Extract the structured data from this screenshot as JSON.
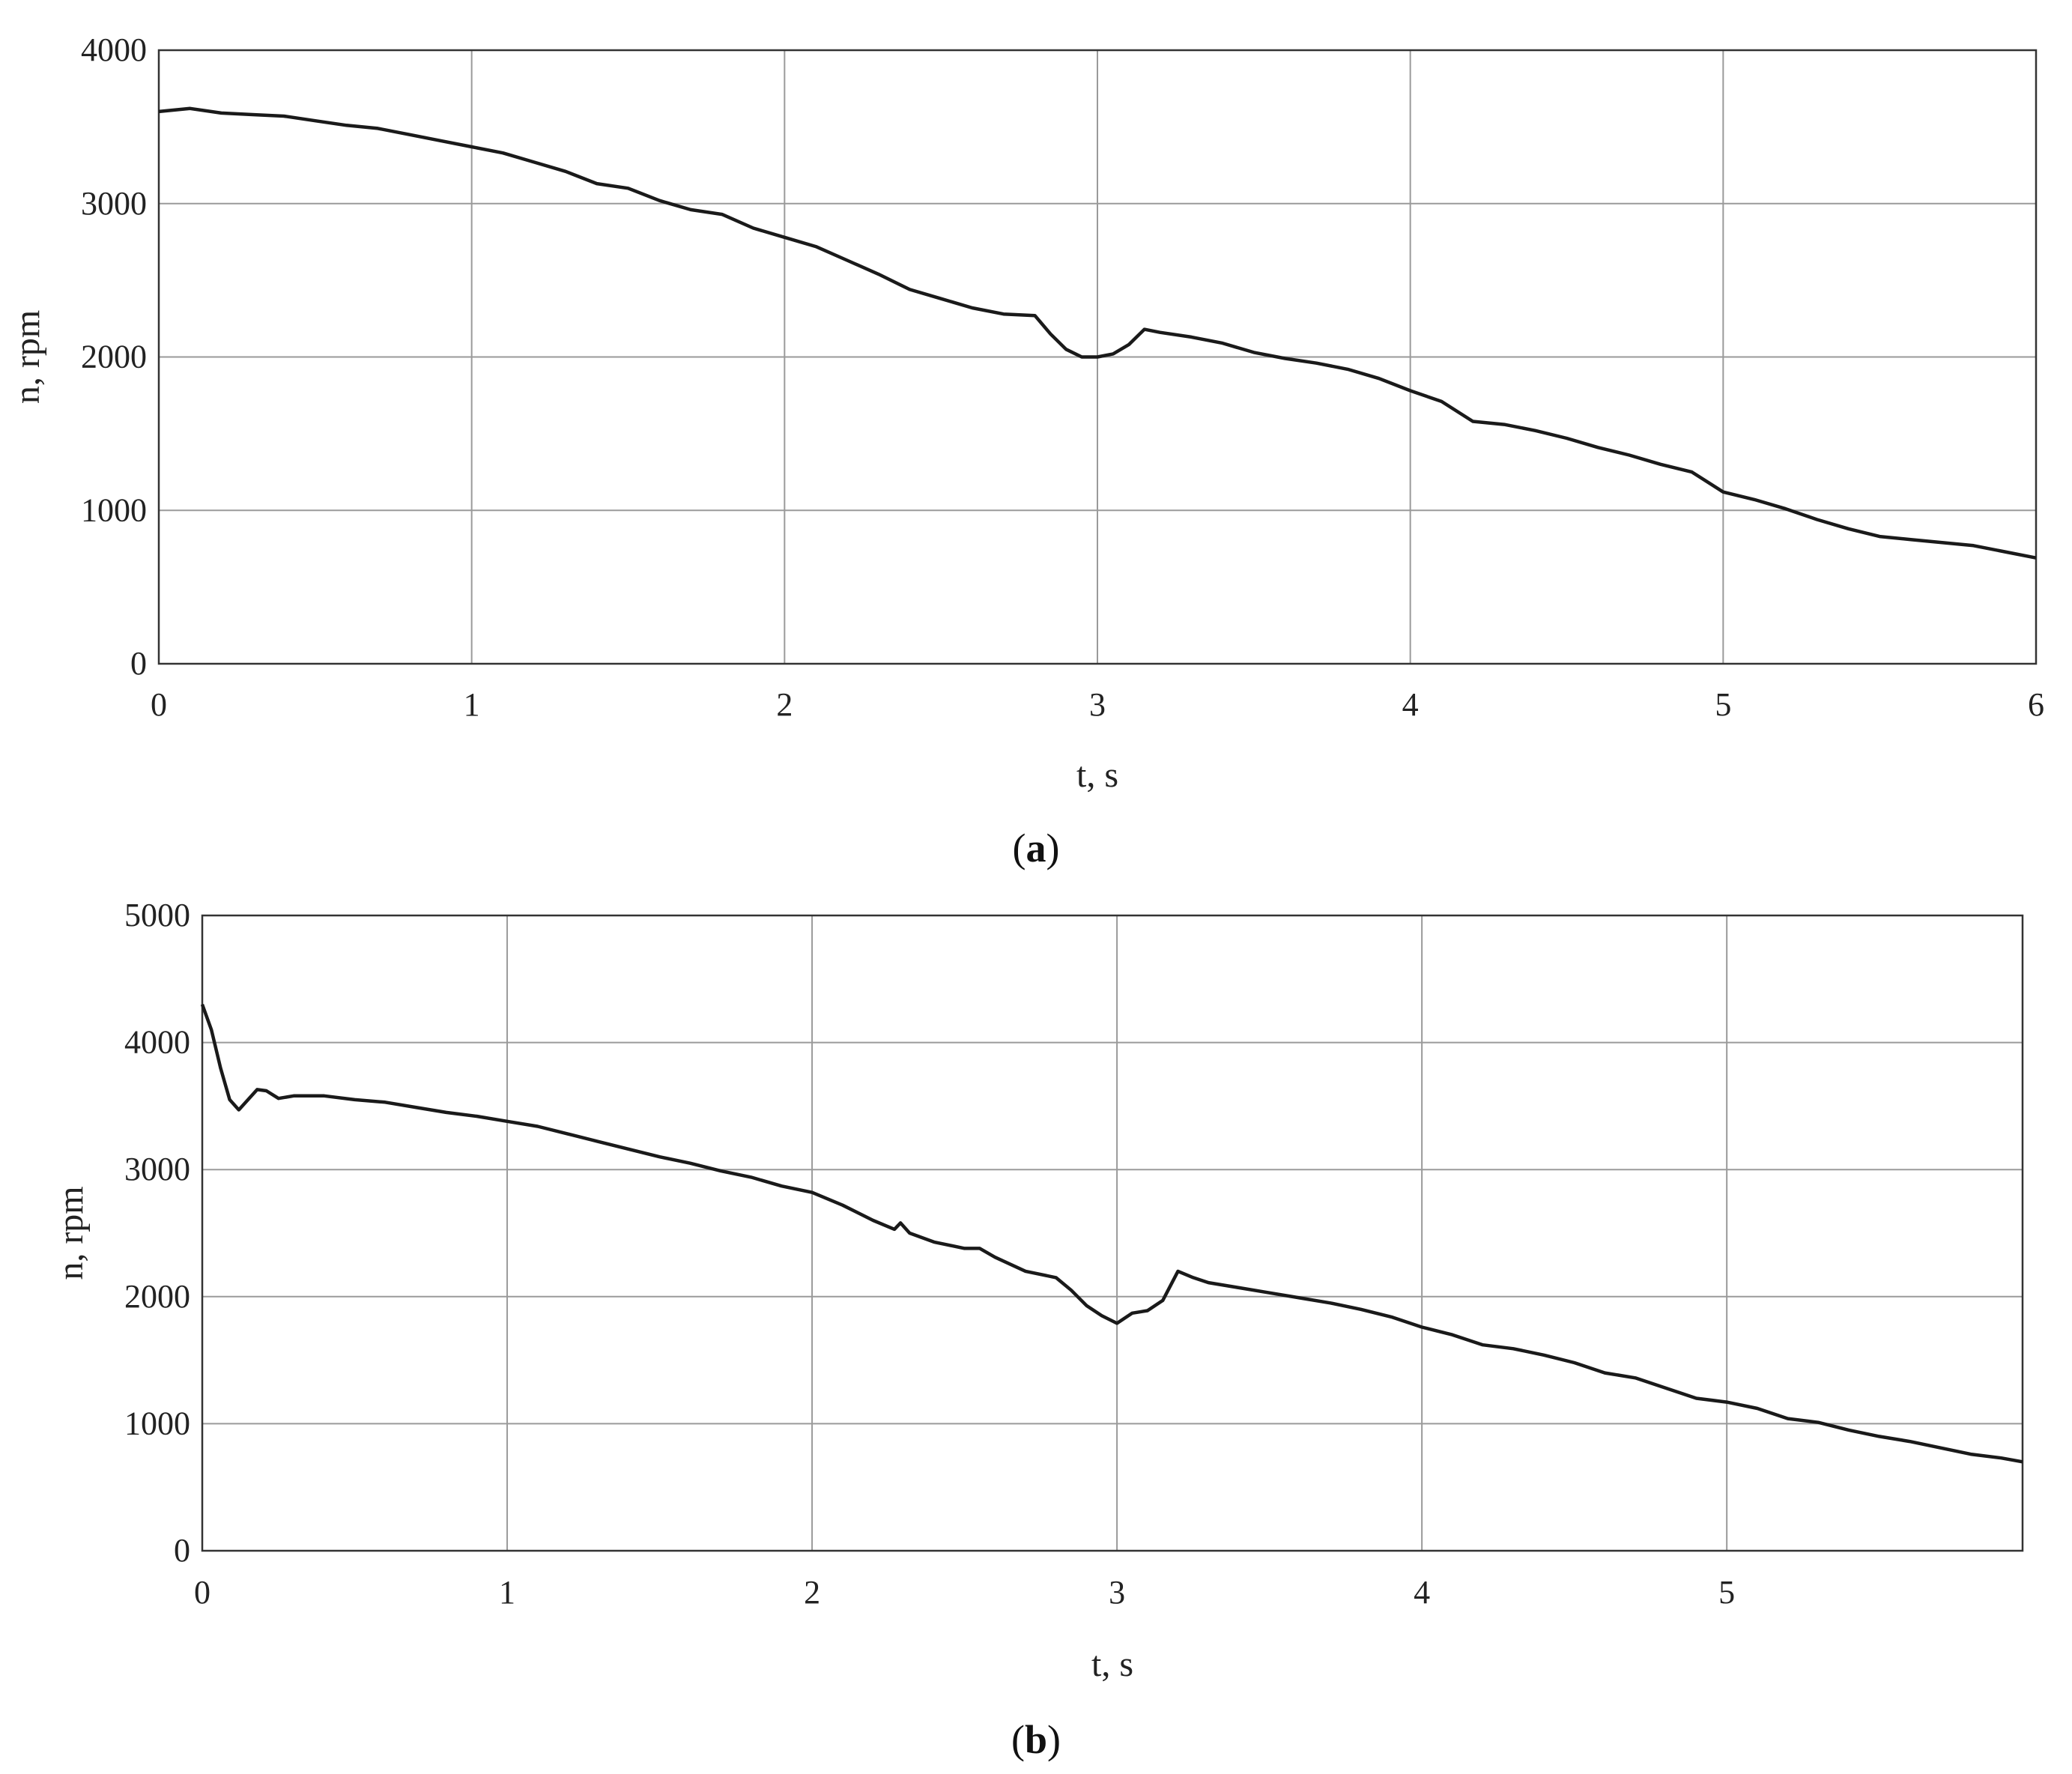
{
  "chart_data": [
    {
      "type": "line",
      "panel_label": "a",
      "xlabel": "t, s",
      "ylabel": "n, rpm",
      "xlim": [
        0,
        6
      ],
      "ylim": [
        0,
        4000
      ],
      "x_ticks": [
        "0",
        "1",
        "2",
        "3",
        "4",
        "5",
        "6"
      ],
      "y_ticks": [
        "0",
        "1000",
        "2000",
        "3000",
        "4000"
      ],
      "grid": true,
      "series": [
        {
          "x": [
            0,
            0.1,
            0.2,
            0.3,
            0.4,
            0.5,
            0.6,
            0.7,
            0.8,
            0.9,
            1.0,
            1.1,
            1.2,
            1.3,
            1.4,
            1.5,
            1.6,
            1.7,
            1.8,
            1.9,
            2.0,
            2.1,
            2.2,
            2.3,
            2.4,
            2.5,
            2.6,
            2.7,
            2.8,
            2.85,
            2.9,
            2.95,
            3.0,
            3.05,
            3.1,
            3.15,
            3.2,
            3.3,
            3.4,
            3.5,
            3.6,
            3.7,
            3.8,
            3.9,
            4.0,
            4.1,
            4.2,
            4.3,
            4.4,
            4.5,
            4.6,
            4.7,
            4.8,
            4.9,
            5.0,
            5.1,
            5.2,
            5.3,
            5.4,
            5.5,
            5.6,
            5.7,
            5.8,
            5.9,
            6.0
          ],
          "y": [
            3600,
            3620,
            3590,
            3580,
            3570,
            3540,
            3510,
            3490,
            3450,
            3410,
            3370,
            3330,
            3270,
            3210,
            3130,
            3100,
            3020,
            2960,
            2930,
            2840,
            2780,
            2720,
            2630,
            2540,
            2440,
            2380,
            2320,
            2280,
            2270,
            2150,
            2050,
            2000,
            2000,
            2020,
            2080,
            2180,
            2160,
            2130,
            2090,
            2030,
            1990,
            1960,
            1920,
            1860,
            1780,
            1710,
            1580,
            1560,
            1520,
            1470,
            1410,
            1360,
            1300,
            1250,
            1120,
            1070,
            1010,
            940,
            880,
            830,
            810,
            790,
            770,
            730,
            690
          ]
        }
      ]
    },
    {
      "type": "line",
      "panel_label": "b",
      "xlabel": "t, s",
      "ylabel": "n, rpm",
      "xlim": [
        0,
        5.97
      ],
      "ylim": [
        0,
        5000
      ],
      "x_ticks": [
        "0",
        "1",
        "2",
        "3",
        "4",
        "5"
      ],
      "y_ticks": [
        "0",
        "1000",
        "2000",
        "3000",
        "4000",
        "5000"
      ],
      "grid": true,
      "series": [
        {
          "x": [
            0,
            0.03,
            0.06,
            0.09,
            0.12,
            0.15,
            0.18,
            0.21,
            0.25,
            0.3,
            0.4,
            0.5,
            0.6,
            0.7,
            0.8,
            0.9,
            1.0,
            1.1,
            1.2,
            1.3,
            1.4,
            1.5,
            1.6,
            1.7,
            1.8,
            1.9,
            2.0,
            2.1,
            2.2,
            2.27,
            2.29,
            2.32,
            2.4,
            2.5,
            2.55,
            2.6,
            2.7,
            2.8,
            2.85,
            2.9,
            2.95,
            3.0,
            3.05,
            3.1,
            3.15,
            3.2,
            3.25,
            3.3,
            3.4,
            3.5,
            3.6,
            3.7,
            3.8,
            3.9,
            4.0,
            4.1,
            4.2,
            4.3,
            4.4,
            4.5,
            4.6,
            4.7,
            4.8,
            4.9,
            5.0,
            5.1,
            5.2,
            5.3,
            5.4,
            5.5,
            5.6,
            5.7,
            5.8,
            5.9,
            5.97
          ],
          "y": [
            4300,
            4100,
            3800,
            3550,
            3470,
            3550,
            3630,
            3620,
            3560,
            3580,
            3580,
            3550,
            3530,
            3490,
            3450,
            3420,
            3380,
            3340,
            3280,
            3220,
            3160,
            3100,
            3050,
            2990,
            2940,
            2870,
            2820,
            2720,
            2600,
            2530,
            2580,
            2500,
            2430,
            2380,
            2380,
            2310,
            2200,
            2150,
            2050,
            1930,
            1850,
            1790,
            1870,
            1890,
            1970,
            2200,
            2150,
            2110,
            2070,
            2030,
            1990,
            1950,
            1900,
            1840,
            1760,
            1700,
            1620,
            1590,
            1540,
            1480,
            1400,
            1360,
            1280,
            1200,
            1170,
            1120,
            1040,
            1010,
            950,
            900,
            860,
            810,
            760,
            730,
            700
          ]
        }
      ]
    }
  ]
}
